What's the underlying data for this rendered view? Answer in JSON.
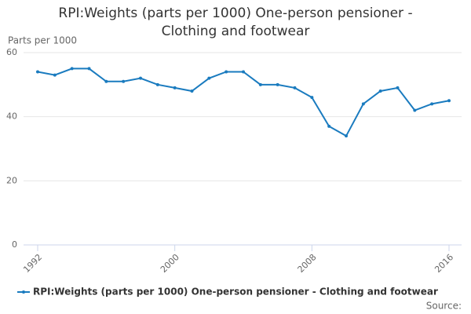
{
  "chart_data": {
    "type": "line",
    "title": "RPI:Weights (parts per 1000) One-person pensioner - Clothing and footwear",
    "y_label": "Parts per 1000",
    "source": "Source:",
    "x": [
      1992,
      1993,
      1994,
      1995,
      1996,
      1997,
      1998,
      1999,
      2000,
      2001,
      2002,
      2003,
      2004,
      2005,
      2006,
      2007,
      2008,
      2009,
      2010,
      2011,
      2012,
      2013,
      2014,
      2015,
      2016
    ],
    "series": [
      {
        "name": "RPI:Weights (parts per 1000) One-person pensioner - Clothing and footwear",
        "color": "#1a7bbf",
        "values": [
          54,
          53,
          55,
          55,
          51,
          51,
          52,
          50,
          49,
          48,
          52,
          54,
          54,
          50,
          50,
          49,
          46,
          37,
          34,
          44,
          48,
          49,
          42,
          44,
          45
        ]
      }
    ],
    "xlim": [
      1992,
      2016
    ],
    "xticks": [
      1992,
      2000,
      2008,
      2016
    ],
    "ylim": [
      0,
      60
    ],
    "yticks": [
      0,
      20,
      40,
      60
    ],
    "grid": true
  }
}
